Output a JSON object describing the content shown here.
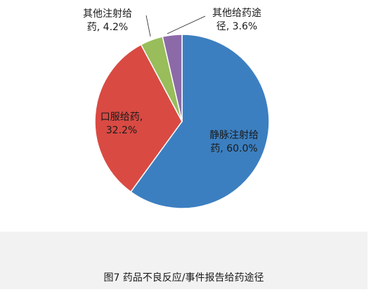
{
  "chart_data": {
    "type": "pie",
    "slices": [
      {
        "name": "静脉注射给药",
        "value": 60.0,
        "label_lines": [
          "静脉注射给",
          "药, 60.0%"
        ],
        "color": "#3c7fc0"
      },
      {
        "name": "口服给药",
        "value": 32.2,
        "label_lines": [
          "口服给药,",
          "32.2%"
        ],
        "color": "#d94a43"
      },
      {
        "name": "其他注射给药",
        "value": 4.2,
        "label_lines": [
          "其他注射给",
          "药, 4.2%"
        ],
        "color": "#98bd5a"
      },
      {
        "name": "其他给药途径",
        "value": 3.6,
        "label_lines": [
          "其他给药途",
          "径, 3.6%"
        ],
        "color": "#8c6aa8"
      }
    ],
    "start": "12 o'clock",
    "direction": "clockwise",
    "legend": "none"
  },
  "caption": "图7 药品不良反应/事件报告给药途径"
}
